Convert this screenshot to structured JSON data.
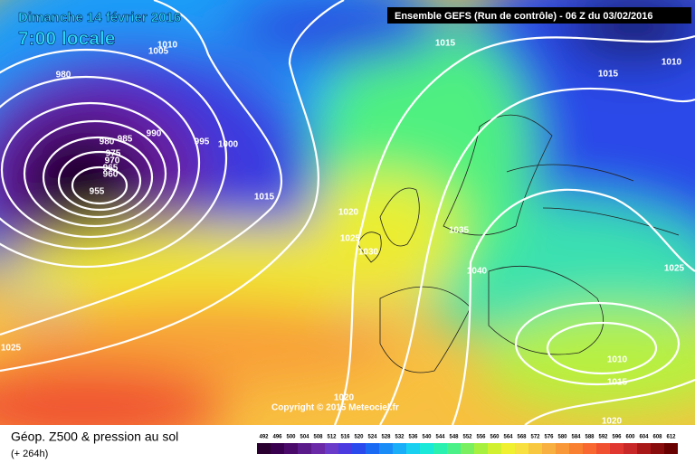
{
  "header": {
    "date": "Dimanche 14 février 2016",
    "time": "7:00 locale",
    "run": "Ensemble GEFS  (Run de contrôle)  - 06 Z du 03/02/2016"
  },
  "isobar_labels": [
    1010,
    1005,
    980,
    1015,
    1015,
    1010,
    980,
    985,
    990,
    995,
    1000,
    975,
    970,
    965,
    960,
    955,
    1015,
    1020,
    1025,
    1030,
    1035,
    1040,
    1025,
    1025,
    1010,
    1015,
    1020,
    1020
  ],
  "copyright": "Copyright © 2015 Meteociel.fr",
  "footer": {
    "title": "Géop. Z500 & pression au sol",
    "lead": "(+ 264h)"
  },
  "legend": {
    "values": [
      492,
      496,
      500,
      504,
      508,
      512,
      516,
      520,
      524,
      528,
      532,
      536,
      540,
      544,
      548,
      552,
      556,
      560,
      564,
      568,
      572,
      576,
      580,
      584,
      588,
      592,
      596,
      600,
      604,
      608,
      612
    ],
    "colors": [
      "#2a0030",
      "#3a0050",
      "#4a0a6a",
      "#5a1a8a",
      "#6a2aa8",
      "#6a3ac8",
      "#4a3ae0",
      "#2a4aee",
      "#1a6af4",
      "#1a8cf8",
      "#1aaef8",
      "#1ad0f0",
      "#1ae8d8",
      "#2af0b0",
      "#4af088",
      "#7af060",
      "#a8f040",
      "#d0f030",
      "#f0f030",
      "#f8e040",
      "#f8c840",
      "#f8b040",
      "#f89838",
      "#f88030",
      "#f86830",
      "#f05030",
      "#e03830",
      "#c82828",
      "#a81818",
      "#880c0c",
      "#680000"
    ]
  }
}
